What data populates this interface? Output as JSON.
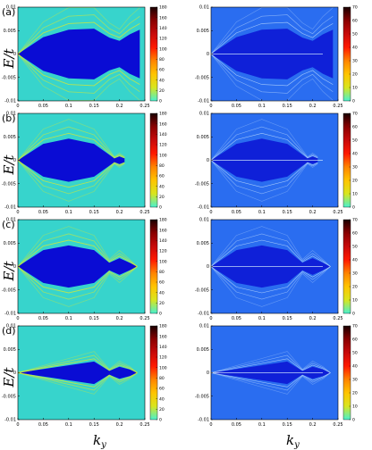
{
  "chart_data": {
    "type": "heatmap",
    "rows": [
      {
        "label": "(a)",
        "panels": [
          {
            "cb_max": 180,
            "cb_ticks": [
              0,
              20,
              40,
              60,
              80,
              100,
              120,
              140,
              160,
              180
            ],
            "gap_edge_ky": [
              0.0,
              0.05,
              0.1,
              0.15,
              0.18,
              0.2,
              0.22,
              0.24
            ],
            "gap_half_width": [
              0.0,
              0.0036,
              0.0052,
              0.0054,
              0.0035,
              0.0028,
              0.0042,
              0.0052
            ]
          },
          {
            "cb_max": 70,
            "cb_ticks": [
              0,
              10,
              20,
              30,
              40,
              50,
              60,
              70
            ]
          }
        ]
      },
      {
        "label": "(b)",
        "panels": [
          {
            "cb_max": 180,
            "cb_ticks": [
              0,
              20,
              40,
              60,
              80,
              100,
              120,
              140,
              160,
              180
            ],
            "gap_edge_ky": [
              0.0,
              0.05,
              0.1,
              0.15,
              0.19,
              0.2,
              0.21
            ],
            "gap_half_width": [
              0.0,
              0.0035,
              0.0046,
              0.0035,
              0.0004,
              0.0008,
              0.0004
            ]
          },
          {
            "cb_max": 70,
            "cb_ticks": [
              0,
              10,
              20,
              30,
              40,
              50,
              60,
              70
            ]
          }
        ]
      },
      {
        "label": "(c)",
        "panels": [
          {
            "cb_max": 180,
            "cb_ticks": [
              0,
              20,
              40,
              60,
              80,
              100,
              120,
              140,
              160,
              180
            ],
            "gap_edge_ky": [
              0.0,
              0.05,
              0.1,
              0.15,
              0.18,
              0.2,
              0.22,
              0.235
            ],
            "gap_half_width": [
              0.0,
              0.0035,
              0.0045,
              0.0035,
              0.0008,
              0.0018,
              0.0008,
              0.0
            ]
          },
          {
            "cb_max": 70,
            "cb_ticks": [
              0,
              10,
              20,
              30,
              40,
              50,
              60,
              70
            ]
          }
        ]
      },
      {
        "label": "(d)",
        "panels": [
          {
            "cb_max": 180,
            "cb_ticks": [
              0,
              20,
              40,
              60,
              80,
              100,
              120,
              140,
              160,
              180
            ],
            "gap_edge_ky": [
              0.0,
              0.1,
              0.15,
              0.18,
              0.2,
              0.22,
              0.235
            ],
            "gap_half_width": [
              0.0,
              0.0016,
              0.0024,
              0.0004,
              0.0013,
              0.0007,
              0.0
            ]
          },
          {
            "cb_max": 70,
            "cb_ticks": [
              0,
              10,
              20,
              30,
              40,
              50,
              60,
              70
            ]
          }
        ]
      }
    ],
    "x_ticks": [
      "0",
      "0.05",
      "0.1",
      "0.15",
      "0.2",
      "0.25"
    ],
    "y_ticks": [
      "0.01",
      "0.005",
      "0",
      "-0.005",
      "-0.01"
    ],
    "xlim": [
      0,
      0.25
    ],
    "ylim": [
      -0.01,
      0.01
    ],
    "xlabel": "k",
    "xlabel_sub": "y",
    "ylabel": "E/t",
    "colors": {
      "background": "#37d4cc",
      "gap": "#0a0cd4",
      "bright": "#ddea2c",
      "right_bg": "#2a6df0",
      "right_gap": "#0f20d8"
    },
    "colormap": [
      "#49f0cf",
      "#d8e51f",
      "#ffc400",
      "#ff8400",
      "#ff1a00",
      "#c80a0a",
      "#8a0000",
      "#1a0000"
    ]
  }
}
